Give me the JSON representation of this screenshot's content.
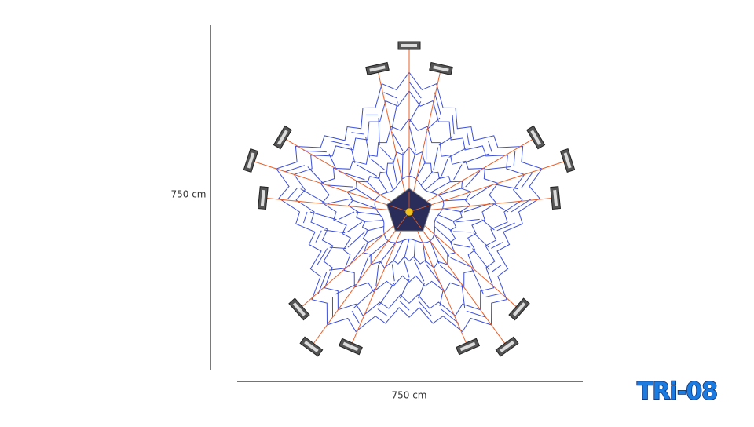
{
  "dimensions": {
    "height": "750 cm",
    "width": "750 cm"
  },
  "logo": "TRi-08"
}
